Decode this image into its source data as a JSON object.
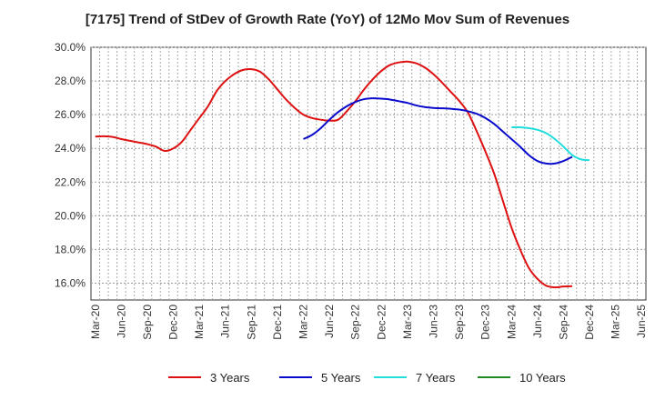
{
  "chart_data": {
    "type": "line",
    "title": "[7175]  Trend of StDev of Growth Rate (YoY) of 12Mo Mov Sum of Revenues",
    "xlabel": "",
    "ylabel": "",
    "ylim": [
      15.0,
      30.0
    ],
    "y_ticks": [
      16.0,
      18.0,
      20.0,
      22.0,
      24.0,
      26.0,
      28.0,
      30.0
    ],
    "y_tick_labels": [
      "16.0%",
      "18.0%",
      "20.0%",
      "22.0%",
      "24.0%",
      "26.0%",
      "28.0%",
      "30.0%"
    ],
    "x_tick_labels": [
      "Mar-20",
      "Jun-20",
      "Sep-20",
      "Dec-20",
      "Mar-21",
      "Jun-21",
      "Sep-21",
      "Dec-21",
      "Mar-22",
      "Jun-22",
      "Sep-22",
      "Dec-22",
      "Mar-23",
      "Jun-23",
      "Sep-23",
      "Dec-23",
      "Mar-24",
      "Jun-24",
      "Sep-24",
      "Dec-24",
      "Mar-25",
      "Jun-25"
    ],
    "x_count": 64,
    "grid": true,
    "series": [
      {
        "name": "3 Years",
        "color": "#dd1111",
        "start": 0,
        "values": [
          24.7,
          24.72,
          24.68,
          24.55,
          24.45,
          24.35,
          24.25,
          24.1,
          23.85,
          24.0,
          24.4,
          25.1,
          25.8,
          26.5,
          27.4,
          28.0,
          28.4,
          28.65,
          28.7,
          28.55,
          28.1,
          27.5,
          26.9,
          26.4,
          26.0,
          25.8,
          25.7,
          25.65,
          25.7,
          26.2,
          26.8,
          27.5,
          28.1,
          28.6,
          28.95,
          29.1,
          29.15,
          29.05,
          28.8,
          28.4,
          27.9,
          27.35,
          26.8,
          26.1,
          25.0,
          23.8,
          22.5,
          20.9,
          19.3,
          18.0,
          16.9,
          16.25,
          15.85,
          15.75,
          15.8,
          15.82
        ]
      },
      {
        "name": "5 Years",
        "color": "#0a0acc",
        "start": 24,
        "values": [
          24.55,
          24.8,
          25.2,
          25.7,
          26.15,
          26.5,
          26.75,
          26.92,
          26.97,
          26.95,
          26.9,
          26.8,
          26.7,
          26.55,
          26.45,
          26.4,
          26.38,
          26.35,
          26.3,
          26.2,
          26.05,
          25.8,
          25.45,
          25.0,
          24.55,
          24.1,
          23.6,
          23.25,
          23.1,
          23.1,
          23.25,
          23.5
        ]
      },
      {
        "name": "7 Years",
        "color": "#22dddd",
        "start": 48,
        "values": [
          25.25,
          25.25,
          25.2,
          25.1,
          24.9,
          24.55,
          24.1,
          23.6,
          23.35,
          23.3
        ]
      },
      {
        "name": "10 Years",
        "color": "#228822",
        "start": 0,
        "values": []
      }
    ]
  }
}
